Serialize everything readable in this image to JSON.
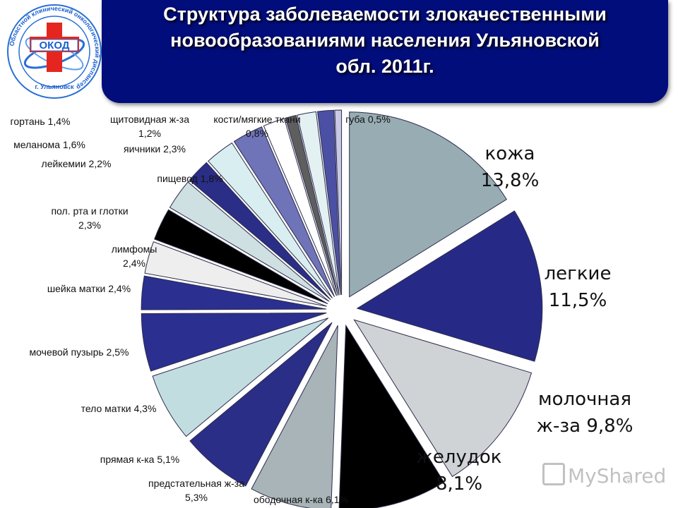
{
  "header": {
    "title_lines": [
      "Структура заболеваемости злокачественными",
      "новообразованиями населения Ульяновской",
      "обл. 2011г."
    ]
  },
  "logo": {
    "abbr": "ОКОД",
    "ring_text": "Областной клинический онкологический диспансер",
    "city": "г. Ульяновск"
  },
  "watermark": "MyShared",
  "page_number": "6",
  "colors": {
    "banner": "#000d7a",
    "slate": "#98adb3",
    "navy": "#262a86",
    "light_gray": "#cfd3d6",
    "black": "#000000",
    "white": "#ffffff"
  },
  "chart_data": {
    "type": "pie",
    "exploded": true,
    "slices": [
      {
        "name": "кожа",
        "value": 13.8,
        "color": "#98adb3",
        "label": [
          "кожа",
          "13,8%"
        ]
      },
      {
        "name": "легкие",
        "value": 11.5,
        "color": "#262a86",
        "label": [
          "легкие",
          "11,5%"
        ]
      },
      {
        "name": "молочная ж-за",
        "value": 9.8,
        "color": "#cfd3d6",
        "label": [
          "молочная",
          "ж-за 9,8%"
        ]
      },
      {
        "name": "желудок",
        "value": 8.1,
        "color": "#000000",
        "label": [
          "желудок",
          "8,1%"
        ]
      },
      {
        "name": "ободочная к-ка",
        "value": 6.1,
        "color": "#a8b4b8",
        "label": [
          "ободочная к-ка 6,1%"
        ]
      },
      {
        "name": "предстательная ж-за",
        "value": 5.3,
        "color": "#2a2e86",
        "label": [
          "предстательная ж-за",
          "5,3%"
        ]
      },
      {
        "name": "прямая к-ка",
        "value": 5.1,
        "color": "#c2dde0",
        "label": [
          "прямая к-ка 5,1%"
        ]
      },
      {
        "name": "тело матки",
        "value": 4.3,
        "color": "#2b2f8f",
        "label": [
          "тело матки 4,3%"
        ]
      },
      {
        "name": "мочевой пузырь",
        "value": 2.5,
        "color": "#2b2f8f",
        "label": [
          "мочевой пузырь 2,5%"
        ]
      },
      {
        "name": "шейка матки",
        "value": 2.4,
        "color": "#eeeeee",
        "label": [
          "шейка матки 2,4%"
        ]
      },
      {
        "name": "лимфомы",
        "value": 2.4,
        "color": "#000000",
        "label": [
          "лимфомы",
          "2,4%"
        ]
      },
      {
        "name": "пол. рта и глотки",
        "value": 2.3,
        "color": "#cfe0e3",
        "label": [
          "пол. рта и глотки",
          "2,3%"
        ]
      },
      {
        "name": "пищевод",
        "value": 1.8,
        "color": "#2a2e86",
        "label": [
          "пищевод 1,8%"
        ]
      },
      {
        "name": "лейкемии",
        "value": 2.2,
        "color": "#d9eef0",
        "label": [
          "лейкемии 2,2%"
        ]
      },
      {
        "name": "яичники",
        "value": 2.3,
        "color": "#6f73b8",
        "label": [
          "яичники 2,3%"
        ]
      },
      {
        "name": "меланома",
        "value": 1.6,
        "color": "#ffffff",
        "label": [
          "меланома 1,6%"
        ]
      },
      {
        "name": "кости/мягкие ткани",
        "value": 0.8,
        "color": "#5e5e5e",
        "label": [
          "кости/мягкие ткани",
          "0,8%"
        ]
      },
      {
        "name": "гортань",
        "value": 1.4,
        "color": "#e3f1f3",
        "label": [
          "гортань 1,4%"
        ]
      },
      {
        "name": "щитовидная ж-за",
        "value": 1.2,
        "color": "#4c50a4",
        "label": [
          "щитовидная ж-за",
          "1,2%"
        ]
      },
      {
        "name": "губа",
        "value": 0.5,
        "color": "#c9c9e6",
        "label": [
          "губа 0,5%"
        ]
      }
    ]
  }
}
